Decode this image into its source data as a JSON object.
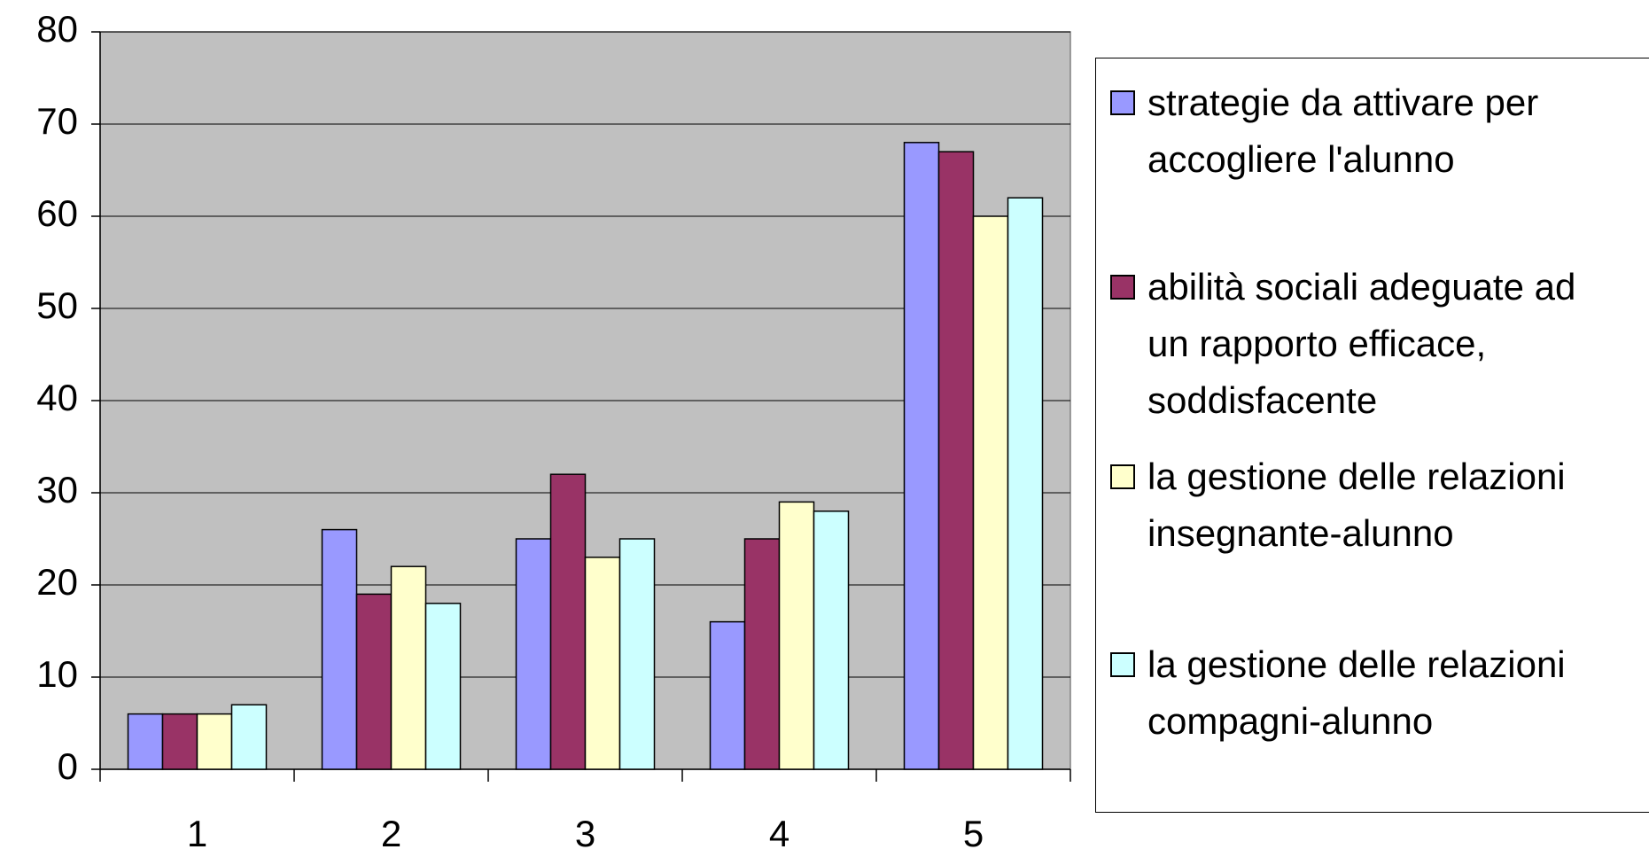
{
  "chart_data": {
    "type": "bar",
    "categories": [
      "1",
      "2",
      "3",
      "4",
      "5"
    ],
    "series": [
      {
        "name": "strategie da attivare per accogliere l'alunno",
        "color": "#9999ff",
        "values": [
          6,
          26,
          25,
          16,
          68
        ]
      },
      {
        "name": "abilità sociali adeguate ad un rapporto efficace, soddisfacente",
        "color": "#993366",
        "values": [
          6,
          19,
          32,
          25,
          67
        ]
      },
      {
        "name": "la gestione delle relazioni insegnante-alunno",
        "color": "#ffffcc",
        "values": [
          6,
          22,
          23,
          29,
          60
        ]
      },
      {
        "name": "la gestione delle relazioni compagni-alunno",
        "color": "#ccffff",
        "values": [
          7,
          18,
          25,
          28,
          62
        ]
      }
    ],
    "ylim": [
      0,
      80
    ],
    "yticks": [
      0,
      10,
      20,
      30,
      40,
      50,
      60,
      70,
      80
    ],
    "grid": true,
    "plot_background": "#c0c0c0",
    "legend": "right"
  }
}
